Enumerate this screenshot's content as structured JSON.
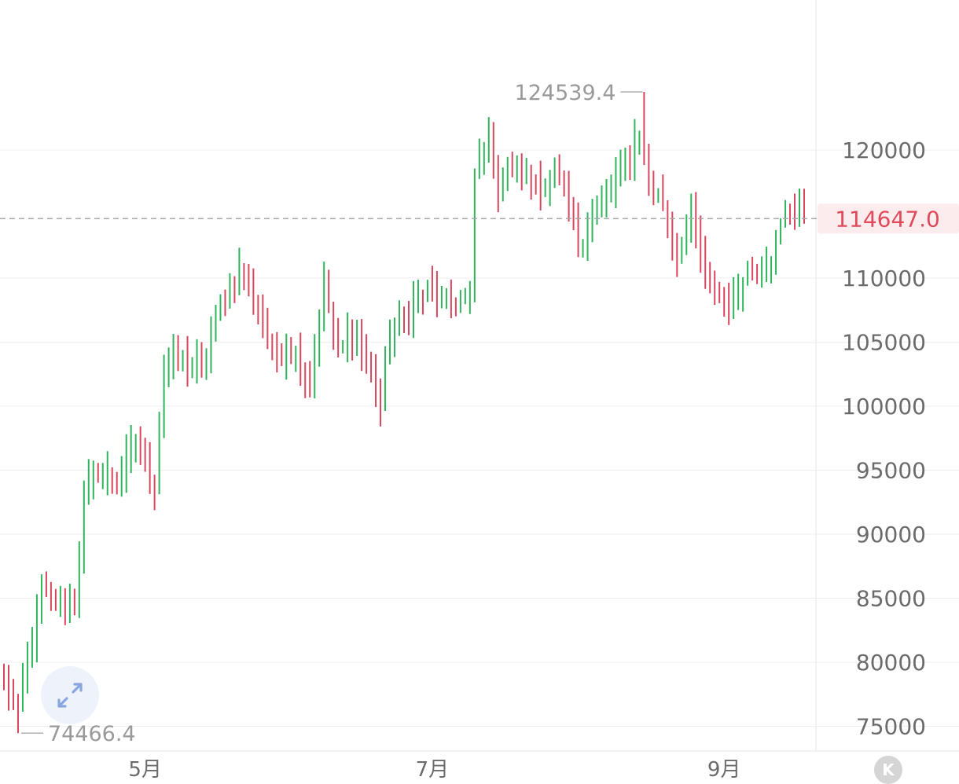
{
  "chart_data": {
    "type": "candlestick",
    "title": "",
    "x_ticks": [
      {
        "label": "5月",
        "index": 30
      },
      {
        "label": "7月",
        "index": 91
      },
      {
        "label": "9月",
        "index": 153
      }
    ],
    "y_ticks": [
      "120000",
      "110000",
      "105000",
      "100000",
      "95000",
      "90000",
      "85000",
      "80000",
      "75000"
    ],
    "y_tick_values": [
      120000,
      110000,
      105000,
      100000,
      95000,
      90000,
      85000,
      80000,
      75000
    ],
    "ylim": [
      72000,
      132500
    ],
    "grid": true,
    "annotations": {
      "high": {
        "label": "124539.4",
        "value": 124539.4,
        "index": 136
      },
      "low": {
        "label": "74466.4",
        "value": 74466.4,
        "index": 3
      }
    },
    "current_price": {
      "label": "114647.0",
      "value": 114647.0
    },
    "colors": {
      "up": "#2fb45c",
      "down": "#d6465d",
      "current": "#e04a5a",
      "grid": "#efefef"
    },
    "waypoints": [
      [
        0,
        78000
      ],
      [
        3,
        76000
      ],
      [
        5,
        80000
      ],
      [
        8,
        85500
      ],
      [
        12,
        84500
      ],
      [
        15,
        85000
      ],
      [
        17,
        93000
      ],
      [
        20,
        95000
      ],
      [
        24,
        94000
      ],
      [
        28,
        97000
      ],
      [
        32,
        94000
      ],
      [
        34,
        103000
      ],
      [
        38,
        103500
      ],
      [
        42,
        103000
      ],
      [
        46,
        108000
      ],
      [
        50,
        110500
      ],
      [
        54,
        108000
      ],
      [
        57,
        104000
      ],
      [
        61,
        104500
      ],
      [
        65,
        102000
      ],
      [
        68,
        109500
      ],
      [
        71,
        104000
      ],
      [
        74,
        106000
      ],
      [
        78,
        103000
      ],
      [
        80,
        100000
      ],
      [
        82,
        106000
      ],
      [
        86,
        107500
      ],
      [
        90,
        109000
      ],
      [
        94,
        108000
      ],
      [
        99,
        108500
      ],
      [
        100,
        118000
      ],
      [
        103,
        121000
      ],
      [
        105,
        117000
      ],
      [
        108,
        118500
      ],
      [
        114,
        117500
      ],
      [
        118,
        117500
      ],
      [
        122,
        113000
      ],
      [
        124,
        114000
      ],
      [
        128,
        116500
      ],
      [
        132,
        119000
      ],
      [
        135,
        121500
      ],
      [
        137,
        117000
      ],
      [
        140,
        116000
      ],
      [
        143,
        112000
      ],
      [
        146,
        115000
      ],
      [
        149,
        110000
      ],
      [
        152,
        109000
      ],
      [
        155,
        108000
      ],
      [
        157,
        110500
      ],
      [
        160,
        111000
      ],
      [
        163,
        112000
      ],
      [
        166,
        115000
      ],
      [
        169,
        115500
      ],
      [
        170,
        114647
      ]
    ]
  },
  "ui": {
    "expand_icon": "expand-arrows-icon",
    "k_badge": "K"
  }
}
